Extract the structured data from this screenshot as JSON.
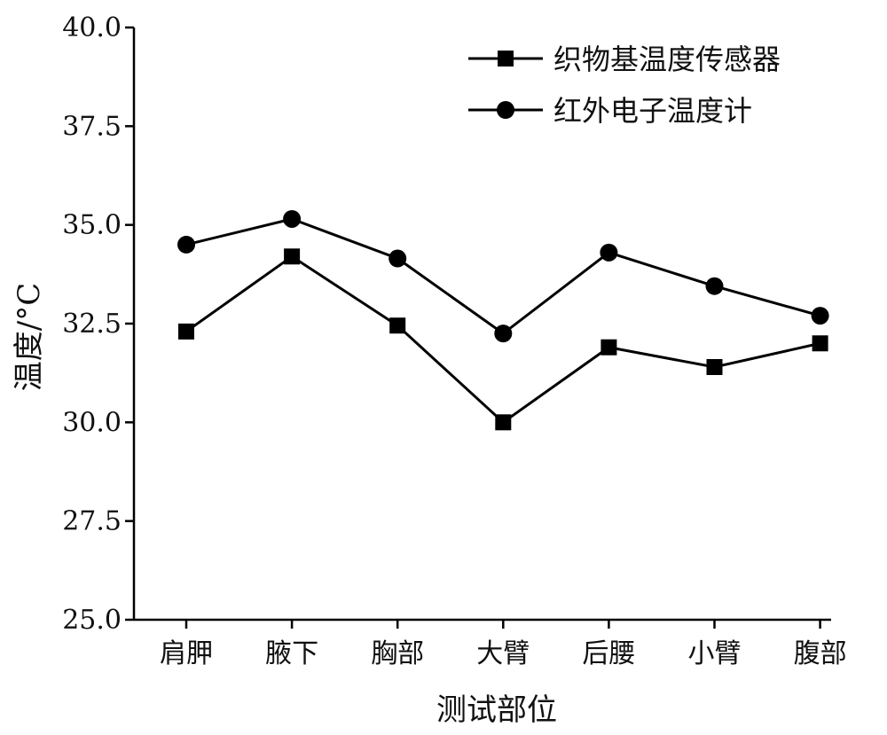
{
  "chart_data": {
    "type": "line",
    "title": "",
    "xlabel": "测试部位",
    "ylabel": "温度/°C",
    "categories": [
      "肩胛",
      "腋下",
      "胸部",
      "大臂",
      "后腰",
      "小臂",
      "腹部"
    ],
    "ylim": [
      25.0,
      40.0
    ],
    "yticks": [
      "25.0",
      "27.5",
      "30.0",
      "32.5",
      "35.0",
      "37.5",
      "40.0"
    ],
    "grid": false,
    "legend_position": "top-right",
    "series": [
      {
        "name": "织物基温度传感器",
        "marker": "square",
        "color": "#000000",
        "values": [
          32.3,
          34.2,
          32.45,
          30.0,
          31.9,
          31.4,
          32.0
        ]
      },
      {
        "name": "红外电子温度计",
        "marker": "circle",
        "color": "#000000",
        "values": [
          34.5,
          35.15,
          34.15,
          32.25,
          34.3,
          33.45,
          32.7
        ]
      }
    ]
  }
}
